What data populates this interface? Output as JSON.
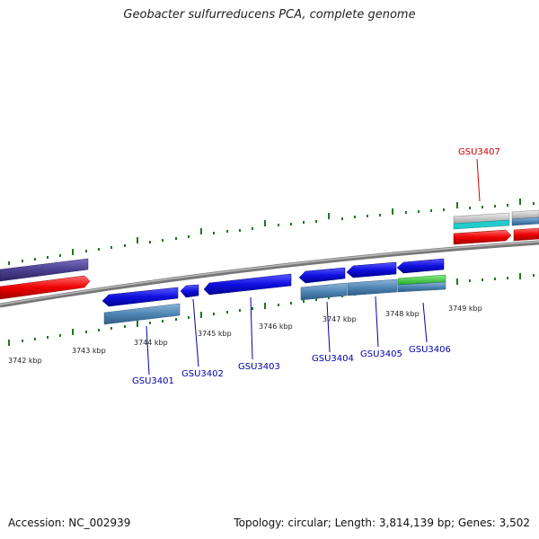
{
  "header": {
    "title": "Geobacter sulfurreducens PCA, complete genome"
  },
  "footer": {
    "accession": "Accession: NC_002939",
    "summary": "Topology: circular; Length: 3,814,139 bp; Genes: 3,502"
  },
  "map": {
    "tick_labels": [
      "3742 kbp",
      "3743 kbp",
      "3744 kbp",
      "3745 kbp",
      "3746 kbp",
      "3747 kbp",
      "3748 kbp",
      "3749 kbp"
    ],
    "genes": [
      {
        "name": "GSU3401",
        "color": "#0000aa"
      },
      {
        "name": "GSU3402",
        "color": "#0000aa"
      },
      {
        "name": "GSU3403",
        "color": "#0000aa"
      },
      {
        "name": "GSU3404",
        "color": "#0000aa"
      },
      {
        "name": "GSU3405",
        "color": "#0000aa"
      },
      {
        "name": "GSU3406",
        "color": "#0000aa"
      },
      {
        "name": "GSU3407",
        "color": "#cc0000"
      }
    ],
    "colors": {
      "backbone": "#8a8a8a",
      "cds_blue": "#1010e0",
      "cds_red": "#ee0000",
      "steel": "#4f86b4",
      "purple": "#4b3f8f",
      "green": "#33cc33",
      "cyan": "#22cccc",
      "tick": "#1a7a1a"
    }
  }
}
